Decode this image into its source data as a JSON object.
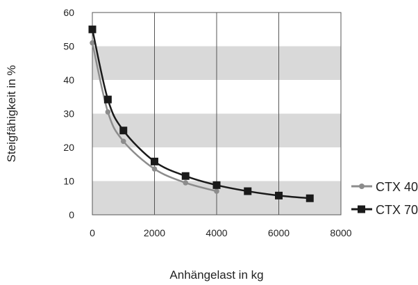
{
  "chart_data": {
    "type": "line",
    "xlabel": "Anhängelast in kg",
    "ylabel": "Steigfähigkeit in %",
    "xlim": [
      0,
      8000
    ],
    "ylim": [
      0,
      60
    ],
    "x_ticks": [
      0,
      2000,
      4000,
      6000,
      8000
    ],
    "y_ticks": [
      0,
      10,
      20,
      30,
      40,
      50,
      60
    ],
    "grid": {
      "horizontal_bands": true,
      "vertical_lines": true
    },
    "band_color": "#d9d9d9",
    "legend_position": "right",
    "series": [
      {
        "name": "CTX 40",
        "color": "#8c8c8c",
        "marker": "circle",
        "x": [
          0,
          500,
          1000,
          2000,
          3000,
          4000
        ],
        "y": [
          51,
          30.5,
          21.8,
          13.6,
          9.5,
          7
        ]
      },
      {
        "name": "CTX 70",
        "color": "#1a1a1a",
        "marker": "square",
        "x": [
          0,
          500,
          1000,
          2000,
          3000,
          4000,
          5000,
          6000,
          7000
        ],
        "y": [
          55,
          34.2,
          25,
          15.8,
          11.5,
          8.8,
          7,
          5.7,
          4.9
        ]
      }
    ]
  }
}
